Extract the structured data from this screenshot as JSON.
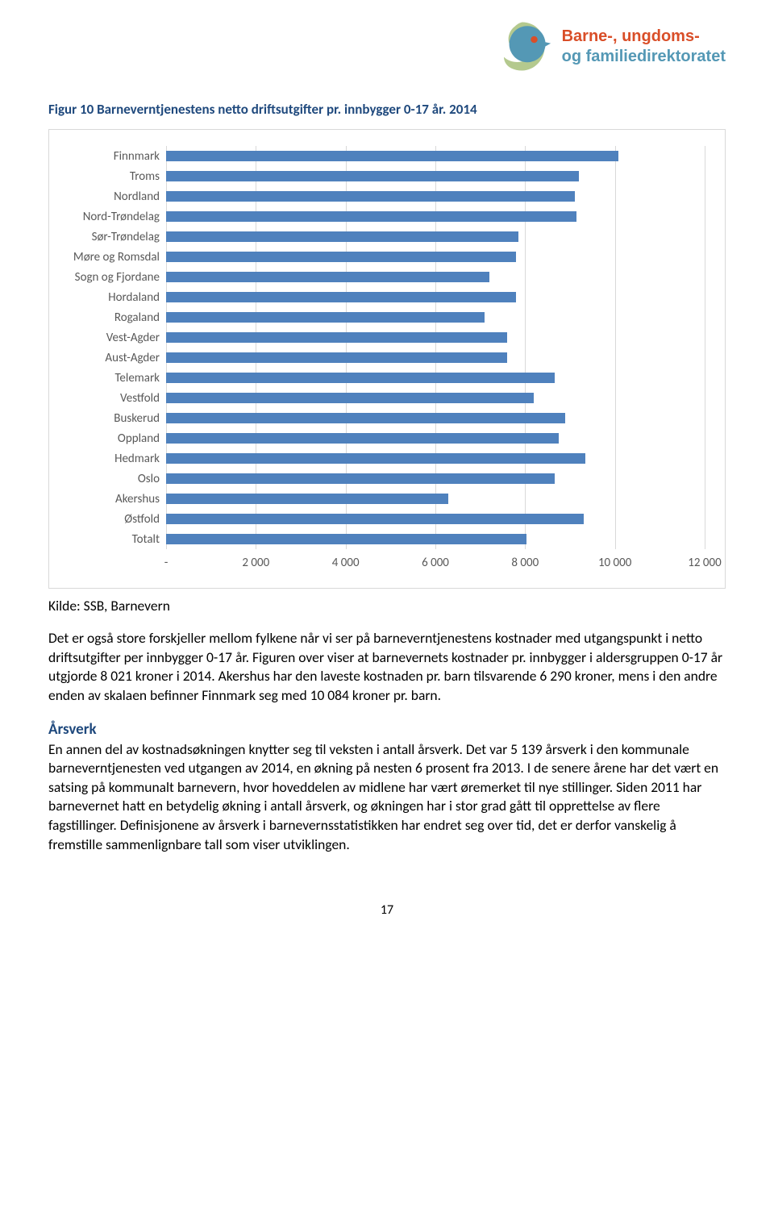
{
  "logo": {
    "line1": "Barne-, ungdoms-",
    "line2": "og familiedirektoratet",
    "color1": "#d94e28",
    "color2": "#5498b5"
  },
  "figure_title": "Figur 10 Barneverntjenestens netto driftsutgifter pr. innbygger 0-17 år. 2014",
  "chart": {
    "type": "bar-horizontal",
    "x_min": 0,
    "x_max": 12000,
    "x_tick_step": 2000,
    "x_ticks": [
      "-",
      "2 000",
      "4 000",
      "6 000",
      "8 000",
      "10 000",
      "12 000"
    ],
    "bar_color": "#4f81bd",
    "grid_color": "#d9d9d9",
    "label_color": "#595959",
    "label_fontsize": 15,
    "categories": [
      {
        "label": "Finnmark",
        "value": 10084
      },
      {
        "label": "Troms",
        "value": 9200
      },
      {
        "label": "Nordland",
        "value": 9100
      },
      {
        "label": "Nord-Trøndelag",
        "value": 9150
      },
      {
        "label": "Sør-Trøndelag",
        "value": 7850
      },
      {
        "label": "Møre og Romsdal",
        "value": 7800
      },
      {
        "label": "Sogn og Fjordane",
        "value": 7200
      },
      {
        "label": "Hordaland",
        "value": 7800
      },
      {
        "label": "Rogaland",
        "value": 7100
      },
      {
        "label": "Vest-Agder",
        "value": 7600
      },
      {
        "label": "Aust-Agder",
        "value": 7600
      },
      {
        "label": "Telemark",
        "value": 8650
      },
      {
        "label": "Vestfold",
        "value": 8200
      },
      {
        "label": "Buskerud",
        "value": 8900
      },
      {
        "label": "Oppland",
        "value": 8750
      },
      {
        "label": "Hedmark",
        "value": 9350
      },
      {
        "label": "Oslo",
        "value": 8650
      },
      {
        "label": "Akershus",
        "value": 6290
      },
      {
        "label": "Østfold",
        "value": 9300
      },
      {
        "label": "Totalt",
        "value": 8021
      }
    ]
  },
  "source": "Kilde: SSB, Barnevern",
  "para1": "Det er også store forskjeller mellom fylkene når vi ser på barneverntjenestens kostnader med utgangspunkt i netto driftsutgifter per innbygger 0-17 år. Figuren over viser at barnevernets kostnader pr. innbygger i aldersgruppen 0-17 år utgjorde 8 021 kroner i 2014. Akershus har den laveste kostnaden pr. barn tilsvarende 6 290 kroner, mens i den andre enden av skalaen befinner Finnmark seg med 10 084 kroner pr. barn.",
  "subhead": "Årsverk",
  "para2": "En annen del av kostnadsøkningen knytter seg til veksten i antall årsverk. Det var 5 139 årsverk i den kommunale barneverntjenesten ved utgangen av 2014, en økning på nesten 6 prosent fra 2013. I de senere årene har det vært en satsing på kommunalt barnevern, hvor hoveddelen av midlene har vært øremerket til nye stillinger. Siden 2011 har barnevernet hatt en betydelig økning i antall årsverk, og økningen har i stor grad gått til opprettelse av flere fagstillinger. Definisjonene av årsverk i barnevernsstatistikken har endret seg over tid, det er derfor vanskelig å fremstille sammenlignbare tall som viser utviklingen.",
  "page_number": "17"
}
